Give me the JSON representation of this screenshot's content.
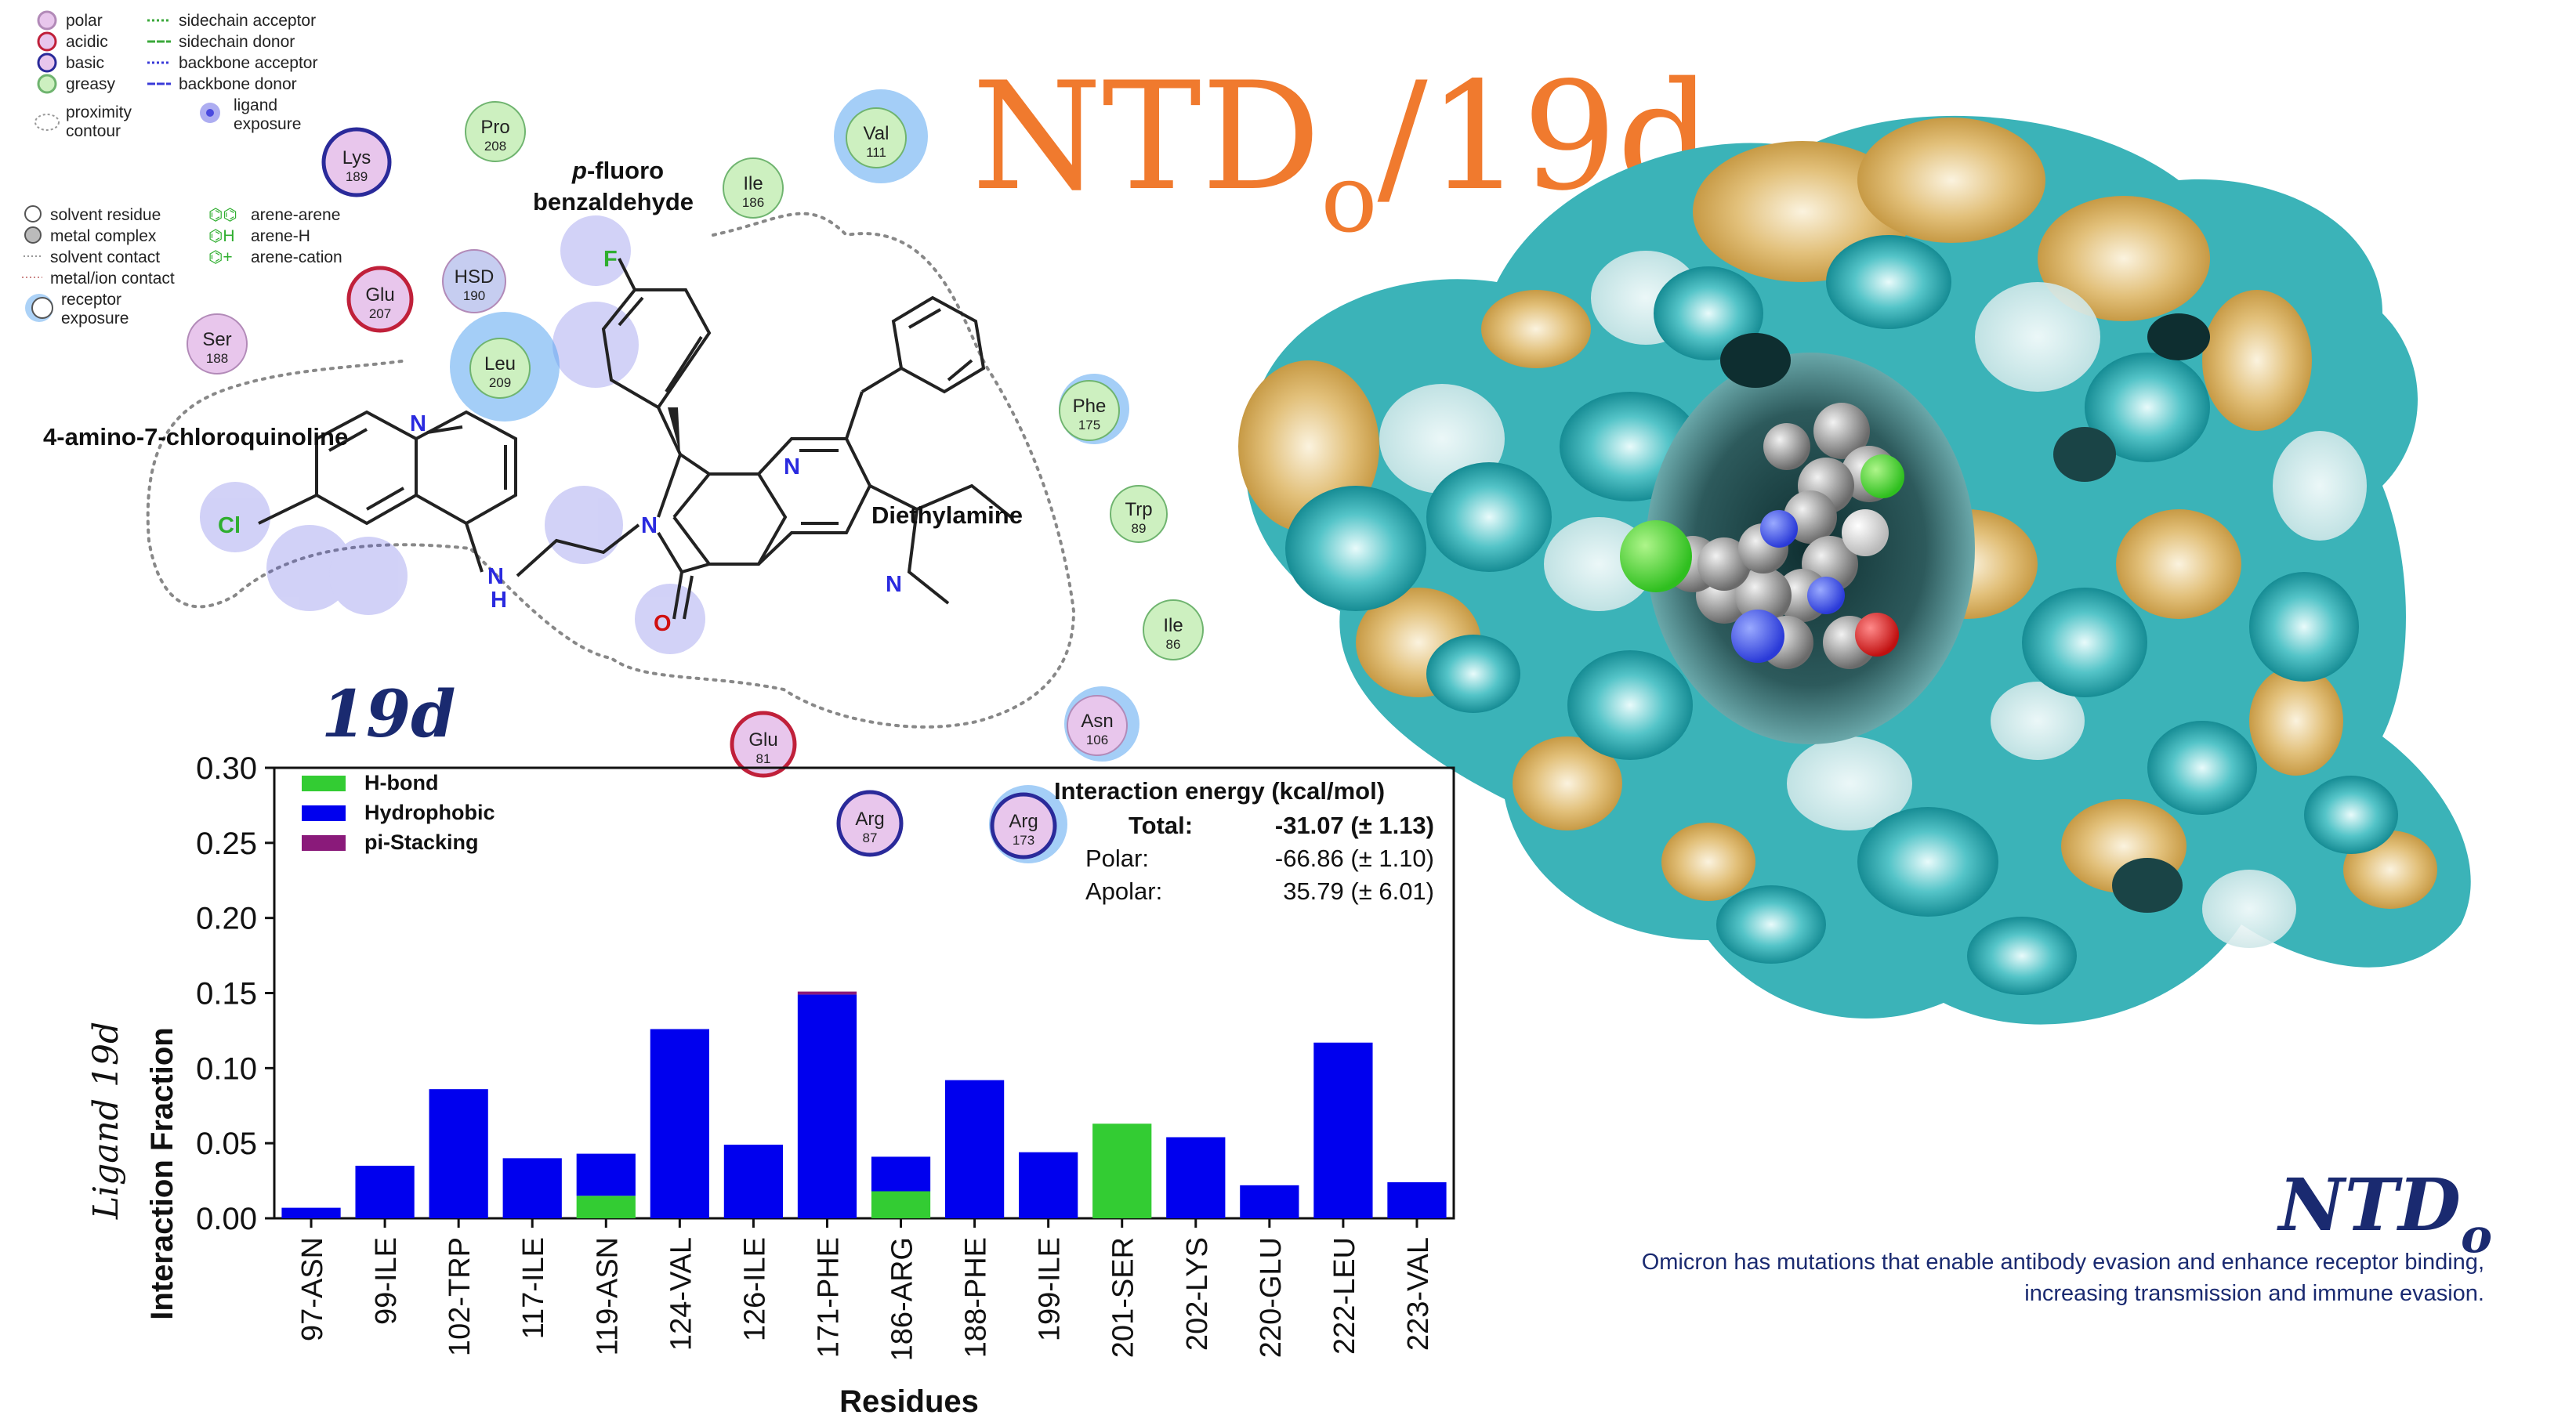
{
  "title_main": "NTD",
  "title_sub": "o",
  "title_suffix": "/19d",
  "compound_label": "19d",
  "ligand_map": {
    "legend_left": [
      {
        "name": "polar",
        "fill": "#e8c6ec",
        "stroke": "#b28ab8"
      },
      {
        "name": "acidic",
        "fill": "#e8c6ec",
        "stroke": "#c0203a"
      },
      {
        "name": "basic",
        "fill": "#e8c6ec",
        "stroke": "#2a2a9a"
      },
      {
        "name": "greasy",
        "fill": "#cdf0c0",
        "stroke": "#6fb46f"
      },
      {
        "name": "proximity",
        "name2": "contour",
        "fill": "none",
        "stroke": "#999"
      }
    ],
    "legend_right": [
      {
        "name": "sidechain acceptor",
        "color": "#3aa83a"
      },
      {
        "name": "sidechain donor",
        "color": "#3aa83a"
      },
      {
        "name": "backbone acceptor",
        "color": "#3a3ad8"
      },
      {
        "name": "backbone donor",
        "color": "#3a3ad8"
      },
      {
        "name": "ligand",
        "name2": "exposure",
        "color": "#4a4adf"
      }
    ],
    "legend_lower": [
      {
        "name": "solvent residue"
      },
      {
        "name": "metal complex"
      },
      {
        "name": "solvent contact"
      },
      {
        "name": "metal/ion contact"
      },
      {
        "name": "receptor",
        "name2": "exposure"
      }
    ],
    "legend_arene": [
      {
        "symbol": "⌬⌬",
        "name": "arene-arene"
      },
      {
        "symbol": "⌬H",
        "name": "arene-H"
      },
      {
        "symbol": "⌬+",
        "name": "arene-cation"
      }
    ],
    "residues": [
      {
        "name": "Lys",
        "num": "189",
        "type": "basic",
        "cx": 455,
        "cy": 207,
        "r": 42,
        "halo": 0
      },
      {
        "name": "Pro",
        "num": "208",
        "type": "greasy",
        "cx": 632,
        "cy": 168,
        "r": 38,
        "halo": 0
      },
      {
        "name": "Val",
        "num": "111",
        "type": "greasy",
        "cx": 1118,
        "cy": 176,
        "r": 38,
        "halo": 60
      },
      {
        "name": "Ile",
        "num": "186",
        "type": "greasy",
        "cx": 961,
        "cy": 240,
        "r": 38,
        "halo": 0
      },
      {
        "name": "HSD",
        "num": "190",
        "type": "polar",
        "cx": 605,
        "cy": 359,
        "r": 40,
        "halo": 0
      },
      {
        "name": "Glu",
        "num": "207",
        "type": "acidic",
        "cx": 485,
        "cy": 382,
        "r": 40,
        "halo": 0
      },
      {
        "name": "Leu",
        "num": "209",
        "type": "greasy",
        "cx": 638,
        "cy": 470,
        "r": 38,
        "halo": 70
      },
      {
        "name": "Ser",
        "num": "188",
        "type": "polar",
        "cx": 277,
        "cy": 439,
        "r": 38,
        "halo": 0
      },
      {
        "name": "Phe",
        "num": "175",
        "type": "greasy",
        "cx": 1390,
        "cy": 524,
        "r": 38,
        "halo": 45
      },
      {
        "name": "Trp",
        "num": "89",
        "type": "greasy",
        "cx": 1453,
        "cy": 656,
        "r": 36,
        "halo": 0
      },
      {
        "name": "Ile",
        "num": "86",
        "type": "greasy",
        "cx": 1497,
        "cy": 804,
        "r": 38,
        "halo": 0
      },
      {
        "name": "Asn",
        "num": "106",
        "type": "polar",
        "cx": 1400,
        "cy": 926,
        "r": 38,
        "halo": 48
      },
      {
        "name": "Glu",
        "num": "81",
        "type": "acidic",
        "cx": 974,
        "cy": 950,
        "r": 40,
        "halo": 0
      },
      {
        "name": "Arg",
        "num": "87",
        "type": "basic",
        "cx": 1110,
        "cy": 1051,
        "r": 40,
        "halo": 0
      },
      {
        "name": "Arg",
        "num": "173",
        "type": "basic",
        "cx": 1306,
        "cy": 1054,
        "r": 40,
        "halo": 50
      }
    ],
    "fragments": {
      "quinoline": "4-amino-7-chloroquinoline",
      "benzaldehyde_italic": "p",
      "benzaldehyde_rest": "-fluoro",
      "benzaldehyde_line2": "benzaldehyde",
      "amine": "Diethylamine"
    },
    "atoms": {
      "F": "F",
      "Cl": "Cl",
      "N": "N",
      "H": "H",
      "O": "O"
    }
  },
  "chart_data": {
    "type": "bar",
    "stacked": true,
    "categories": [
      "97-ASN",
      "99-ILE",
      "102-TRP",
      "117-ILE",
      "119-ASN",
      "124-VAL",
      "126-ILE",
      "171-PHE",
      "186-ARG",
      "188-PHE",
      "199-ILE",
      "201-SER",
      "202-LYS",
      "220-GLU",
      "222-LEU",
      "223-VAL"
    ],
    "series": [
      {
        "name": "H-bond",
        "color": "#33cc33",
        "values": [
          0,
          0,
          0,
          0,
          0.015,
          0,
          0,
          0,
          0.018,
          0,
          0,
          0.063,
          0,
          0,
          0,
          0
        ]
      },
      {
        "name": "Hydrophobic",
        "color": "#0000ee",
        "values": [
          0.007,
          0.035,
          0.086,
          0.04,
          0.028,
          0.126,
          0.049,
          0.149,
          0.023,
          0.092,
          0.044,
          0,
          0.054,
          0.022,
          0.117,
          0.024
        ]
      },
      {
        "name": "pi-Stacking",
        "color": "#8a1a7a",
        "values": [
          0,
          0,
          0,
          0,
          0,
          0,
          0,
          0.002,
          0,
          0,
          0,
          0,
          0,
          0,
          0,
          0
        ]
      }
    ],
    "ylim": [
      0,
      0.3
    ],
    "yticks": [
      "0.00",
      "0.05",
      "0.10",
      "0.15",
      "0.20",
      "0.25",
      "0.30"
    ],
    "ylabel": "Interaction Fraction",
    "ylabel_prefix": "Ligand 19d",
    "xlabel": "Residues",
    "legend": "top-left",
    "grid": false,
    "energy": {
      "title": "Interaction energy (kcal/mol)",
      "rows": [
        {
          "label": "Total:",
          "value": "-31.07 (± 1.13)",
          "bold": true
        },
        {
          "label": "Polar:",
          "value": "-66.86 (± 1.10)",
          "bold": false
        },
        {
          "label": "Apolar:",
          "value": "35.79 (± 6.01)",
          "bold": false
        }
      ]
    }
  },
  "caption": {
    "title_main": "NTD",
    "title_sub": "o",
    "line1": "Omicron has mutations that enable antibody evasion and enhance receptor binding,",
    "line2": "increasing transmission and immune evasion."
  },
  "colors": {
    "title": "#f07a2e",
    "navy": "#1a2a70",
    "surface_teal": "#1aa0a8",
    "surface_tan": "#d8b060",
    "exposure_blue": "#5a5af0"
  }
}
